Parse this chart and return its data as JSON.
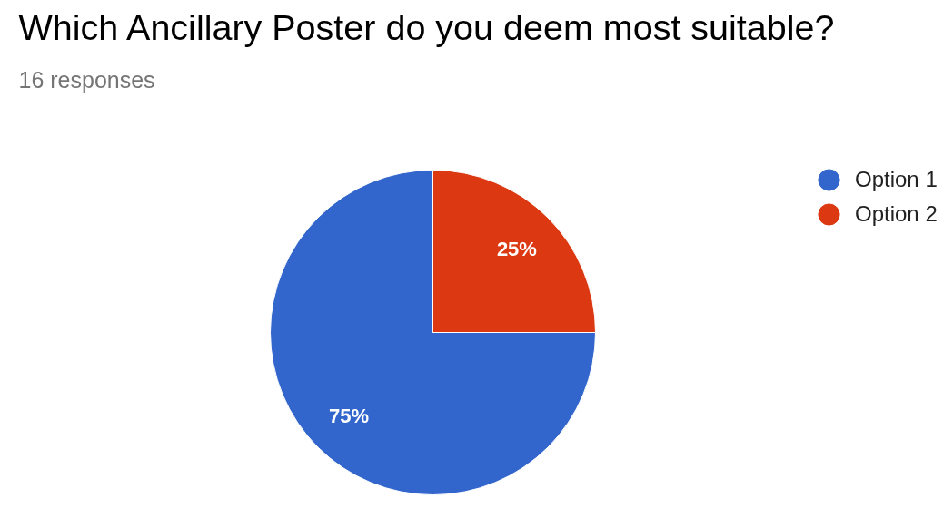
{
  "chart_data": {
    "type": "pie",
    "title": "Which Ancillary Poster do you deem most suitable?",
    "subtitle": "16 responses",
    "categories": [
      "Option 1",
      "Option 2"
    ],
    "values": [
      75,
      25
    ],
    "colors": [
      "#3366cc",
      "#dc3912"
    ],
    "value_labels": [
      "75%",
      "25%"
    ],
    "legend": "right"
  }
}
